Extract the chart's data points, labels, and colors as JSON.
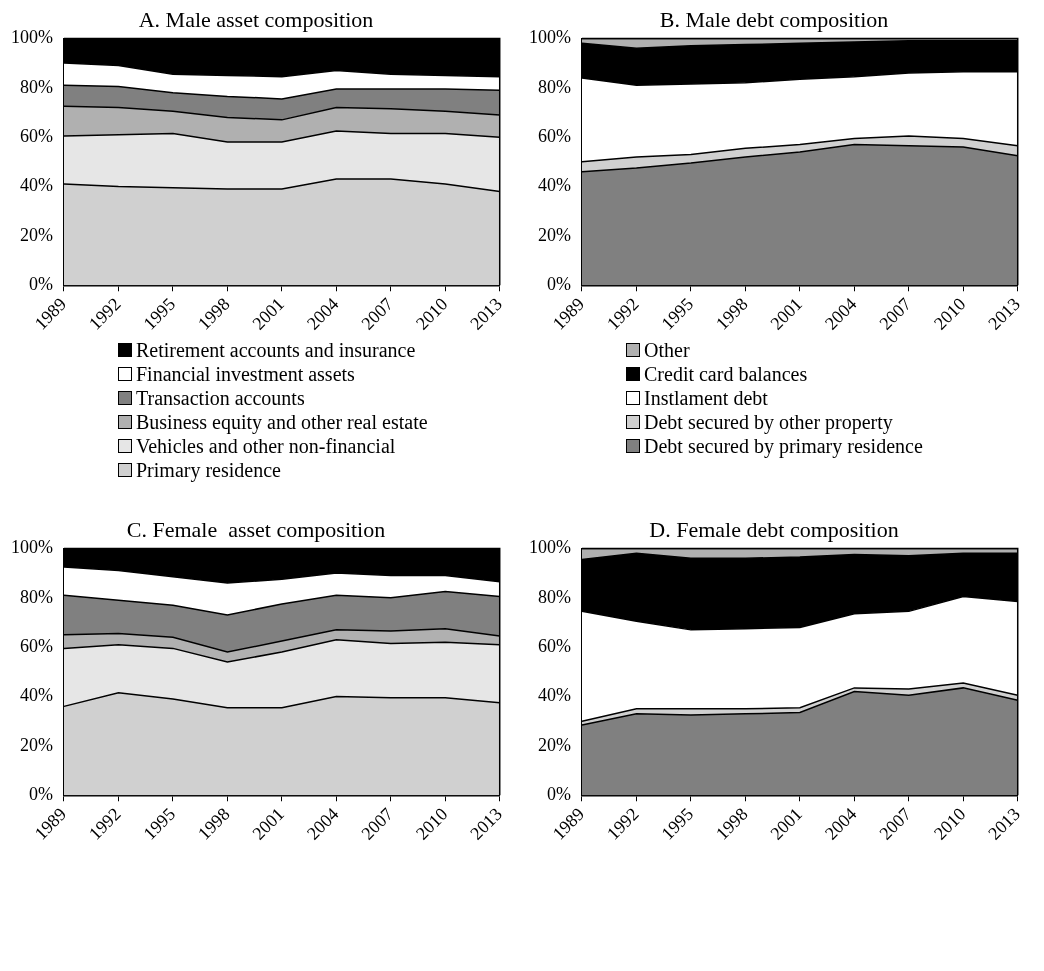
{
  "chart_data": [
    {
      "type": "area",
      "title": "A. Male asset composition",
      "stacked": true,
      "legend": "bottom",
      "categories": [
        "1989",
        "1992",
        "1995",
        "1998",
        "2001",
        "2004",
        "2007",
        "2010",
        "2013"
      ],
      "ylim": [
        0,
        100
      ],
      "yticks": [
        {
          "value": 0,
          "label": "0%"
        },
        {
          "value": 20,
          "label": "20%"
        },
        {
          "value": 40,
          "label": "40%"
        },
        {
          "value": 60,
          "label": "60%"
        },
        {
          "value": 80,
          "label": "80%"
        },
        {
          "value": 100,
          "label": "100%"
        }
      ],
      "series": [
        {
          "name": "Primary residence",
          "color": "#d0d0d0",
          "values": [
            41,
            40,
            39.5,
            39,
            39,
            43,
            43,
            41,
            38
          ]
        },
        {
          "name": "Vehicles and other non-financial",
          "color": "#e6e6e6",
          "values": [
            19.5,
            21,
            22,
            19,
            19,
            19.5,
            18.5,
            20.5,
            22
          ]
        },
        {
          "name": "Business equity and other real estate",
          "color": "#b0b0b0",
          "values": [
            12,
            11,
            9,
            10,
            9,
            9.5,
            10,
            9,
            9
          ]
        },
        {
          "name": "Transaction accounts",
          "color": "#808080",
          "values": [
            8.5,
            8.5,
            7.5,
            8.5,
            8.5,
            7.5,
            8,
            9,
            10
          ]
        },
        {
          "name": "Financial investment assets",
          "color": "#ffffff",
          "values": [
            9,
            8.5,
            7.5,
            8.5,
            9,
            7.5,
            6,
            5.5,
            5.5
          ]
        },
        {
          "name": "Retirement accounts and insurance",
          "color": "#000000",
          "values": [
            10,
            11,
            14.5,
            15,
            15.5,
            13,
            14.5,
            15,
            15.5
          ]
        }
      ]
    },
    {
      "type": "area",
      "title": "B. Male debt composition",
      "stacked": true,
      "legend": "bottom",
      "categories": [
        "1989",
        "1992",
        "1995",
        "1998",
        "2001",
        "2004",
        "2007",
        "2010",
        "2013"
      ],
      "ylim": [
        0,
        100
      ],
      "yticks": [
        {
          "value": 0,
          "label": "0%"
        },
        {
          "value": 20,
          "label": "20%"
        },
        {
          "value": 40,
          "label": "40%"
        },
        {
          "value": 60,
          "label": "60%"
        },
        {
          "value": 80,
          "label": "80%"
        },
        {
          "value": 100,
          "label": "100%"
        }
      ],
      "series": [
        {
          "name": "Debt secured by primary residence",
          "color": "#808080",
          "values": [
            46,
            47.5,
            49.5,
            52,
            54,
            57,
            56.5,
            56,
            52.5
          ]
        },
        {
          "name": "Debt secured by other property",
          "color": "#d0d0d0",
          "values": [
            4,
            4.5,
            3.5,
            3.5,
            3,
            2.5,
            4,
            3.5,
            4
          ]
        },
        {
          "name": "Instlament debt",
          "color": "#ffffff",
          "values": [
            34,
            29,
            28.5,
            26.5,
            26.5,
            25,
            25.5,
            27,
            30
          ]
        },
        {
          "name": "Credit card balances",
          "color": "#000000",
          "values": [
            14,
            15,
            15.5,
            15.5,
            14.5,
            14,
            13,
            12.5,
            12.5
          ]
        },
        {
          "name": "Other",
          "color": "#b0b0b0",
          "values": [
            2,
            4,
            3,
            2.5,
            2,
            1.5,
            1,
            1,
            1
          ]
        }
      ]
    },
    {
      "type": "area",
      "title": "C. Female  asset composition",
      "stacked": true,
      "categories": [
        "1989",
        "1992",
        "1995",
        "1998",
        "2001",
        "2004",
        "2007",
        "2010",
        "2013"
      ],
      "ylim": [
        0,
        100
      ],
      "yticks": [
        {
          "value": 0,
          "label": "0%"
        },
        {
          "value": 20,
          "label": "20%"
        },
        {
          "value": 40,
          "label": "40%"
        },
        {
          "value": 60,
          "label": "60%"
        },
        {
          "value": 80,
          "label": "80%"
        },
        {
          "value": 100,
          "label": "100%"
        }
      ],
      "series": [
        {
          "color": "#d0d0d0",
          "values": [
            36,
            41.5,
            39,
            35.5,
            35.5,
            40,
            39.5,
            39.5,
            37.5
          ]
        },
        {
          "color": "#e6e6e6",
          "values": [
            23.5,
            19.5,
            20.5,
            18.5,
            22.5,
            23,
            22,
            22.5,
            23.5
          ]
        },
        {
          "color": "#b0b0b0",
          "values": [
            5.5,
            4.5,
            4.5,
            4,
            4.5,
            4,
            5,
            5.5,
            3.5
          ]
        },
        {
          "color": "#808080",
          "values": [
            16,
            13.5,
            13,
            15,
            15,
            14,
            13.5,
            15,
            16
          ]
        },
        {
          "color": "#ffffff",
          "values": [
            11.5,
            12,
            11.5,
            13,
            10,
            9,
            9,
            6.5,
            6
          ]
        },
        {
          "color": "#000000",
          "values": [
            7.5,
            9,
            11.5,
            14,
            12.5,
            10,
            11,
            11,
            13.5
          ]
        }
      ]
    },
    {
      "type": "area",
      "title": "D. Female debt composition",
      "stacked": true,
      "categories": [
        "1989",
        "1992",
        "1995",
        "1998",
        "2001",
        "2004",
        "2007",
        "2010",
        "2013"
      ],
      "ylim": [
        0,
        100
      ],
      "yticks": [
        {
          "value": 0,
          "label": "0%"
        },
        {
          "value": 20,
          "label": "20%"
        },
        {
          "value": 40,
          "label": "40%"
        },
        {
          "value": 60,
          "label": "60%"
        },
        {
          "value": 80,
          "label": "80%"
        },
        {
          "value": 100,
          "label": "100%"
        }
      ],
      "series": [
        {
          "color": "#808080",
          "values": [
            28.5,
            33,
            32.5,
            33,
            33.5,
            42,
            40.5,
            43.5,
            38.5
          ]
        },
        {
          "color": "#d0d0d0",
          "values": [
            1.5,
            2,
            2.5,
            2,
            2,
            1.5,
            2.5,
            2,
            2
          ]
        },
        {
          "color": "#ffffff",
          "values": [
            44.5,
            35.5,
            32,
            32.5,
            32.5,
            30,
            31.5,
            35,
            38
          ]
        },
        {
          "color": "#000000",
          "values": [
            21,
            27.5,
            29,
            28.5,
            28.5,
            24,
            22.5,
            17.5,
            19.5
          ]
        },
        {
          "color": "#b0b0b0",
          "values": [
            4.5,
            2,
            4,
            4,
            3.5,
            2.5,
            3,
            2,
            2
          ]
        }
      ]
    }
  ]
}
